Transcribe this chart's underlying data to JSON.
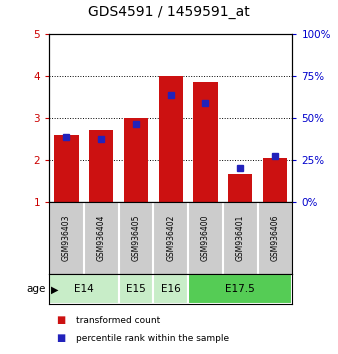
{
  "title": "GDS4591 / 1459591_at",
  "samples": [
    "GSM936403",
    "GSM936404",
    "GSM936405",
    "GSM936402",
    "GSM936400",
    "GSM936401",
    "GSM936406"
  ],
  "red_values": [
    2.6,
    2.7,
    3.0,
    4.0,
    3.85,
    1.65,
    2.05
  ],
  "blue_values": [
    2.55,
    2.5,
    2.85,
    3.55,
    3.35,
    1.8,
    2.1
  ],
  "age_groups": [
    {
      "label": "E14",
      "start": 0,
      "end": 2,
      "color": "#c8edc8"
    },
    {
      "label": "E15",
      "start": 2,
      "end": 3,
      "color": "#c8edc8"
    },
    {
      "label": "E16",
      "start": 3,
      "end": 4,
      "color": "#c8edc8"
    },
    {
      "label": "E17.5",
      "start": 4,
      "end": 7,
      "color": "#55cc55"
    }
  ],
  "ylim_left": [
    1,
    5
  ],
  "ylim_right": [
    0,
    100
  ],
  "yticks_left": [
    1,
    2,
    3,
    4,
    5
  ],
  "yticks_right": [
    0,
    25,
    50,
    75,
    100
  ],
  "red_color": "#cc1111",
  "blue_color": "#2222bb",
  "bar_width": 0.7,
  "plot_bg": "#ffffff",
  "sample_bg": "#cccccc",
  "legend_red": "transformed count",
  "legend_blue": "percentile rank within the sample",
  "age_label": "age",
  "title_fontsize": 10,
  "tick_fontsize": 7.5,
  "right_tick_color": "#0000cc",
  "left_tick_color": "#cc0000"
}
